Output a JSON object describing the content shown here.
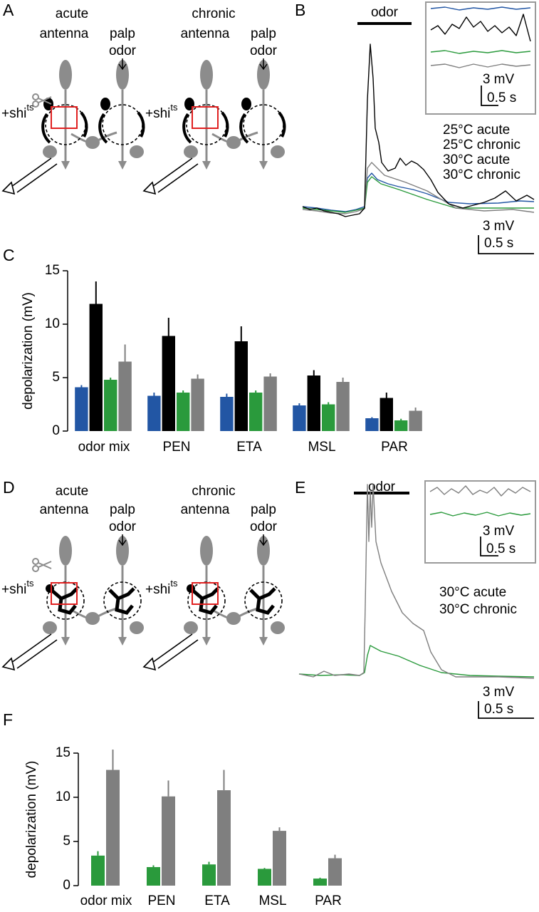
{
  "panels": [
    "A",
    "B",
    "C",
    "D",
    "E",
    "F"
  ],
  "diagram_A": {
    "left": {
      "condition": "acute",
      "input1": "antenna",
      "input2": "palp",
      "stimulus": "odor",
      "genotype": "+shi",
      "genotype_sup": "ts"
    },
    "right": {
      "condition": "chronic",
      "input1": "antenna",
      "input2": "palp",
      "stimulus": "odor",
      "genotype": "+shi",
      "genotype_sup": "ts"
    }
  },
  "diagram_D": {
    "left": {
      "condition": "acute",
      "input1": "antenna",
      "input2": "palp",
      "stimulus": "odor",
      "genotype": "+shi",
      "genotype_sup": "ts"
    },
    "right": {
      "condition": "chronic",
      "input1": "antenna",
      "input2": "palp",
      "stimulus": "odor",
      "genotype": "+shi",
      "genotype_sup": "ts"
    }
  },
  "trace_B": {
    "stimulus": "odor",
    "scale_v": "3 mV",
    "scale_t": "0.5 s",
    "inset_scale_v": "3 mV",
    "inset_scale_t": "0.5 s"
  },
  "trace_E": {
    "stimulus": "odor",
    "scale_v": "3 mV",
    "scale_t": "0.5 s",
    "inset_scale_v": "3 mV",
    "inset_scale_t": "0.5 s"
  },
  "chart_data": [
    {
      "type": "bar",
      "ylabel": "depolarization (mV)",
      "categories": [
        "odor mix",
        "PEN",
        "ETA",
        "MSL",
        "PAR"
      ],
      "series": [
        {
          "name": "25°C acute",
          "color": "#2256a4",
          "values": [
            4.1,
            3.3,
            3.2,
            2.4,
            1.2
          ],
          "errors": [
            0.2,
            0.3,
            0.3,
            0.2,
            0.1
          ]
        },
        {
          "name": "25°C chronic",
          "color": "#000000",
          "values": [
            11.9,
            8.9,
            8.4,
            5.2,
            3.1
          ],
          "errors": [
            2.1,
            1.7,
            1.4,
            0.5,
            0.5
          ]
        },
        {
          "name": "30°C acute",
          "color": "#2a9a3c",
          "values": [
            4.8,
            3.6,
            3.6,
            2.5,
            1.0
          ],
          "errors": [
            0.2,
            0.2,
            0.2,
            0.2,
            0.15
          ]
        },
        {
          "name": "30°C chronic",
          "color": "#7f7f7f",
          "values": [
            6.5,
            4.9,
            5.1,
            4.6,
            1.9
          ],
          "errors": [
            1.6,
            0.4,
            0.3,
            0.4,
            0.3
          ]
        }
      ],
      "ylim": [
        0,
        15
      ],
      "yticks": [
        0,
        5,
        10,
        15
      ]
    },
    {
      "type": "bar",
      "ylabel": "depolarization (mV)",
      "categories": [
        "odor mix",
        "PEN",
        "ETA",
        "MSL",
        "PAR"
      ],
      "series": [
        {
          "name": "30°C acute",
          "color": "#2a9a3c",
          "values": [
            3.4,
            2.1,
            2.4,
            1.9,
            0.8
          ],
          "errors": [
            0.5,
            0.2,
            0.3,
            0.1,
            0.1
          ]
        },
        {
          "name": "30°C chronic",
          "color": "#7f7f7f",
          "values": [
            13.1,
            10.1,
            10.8,
            6.2,
            3.1
          ],
          "errors": [
            2.3,
            1.8,
            2.3,
            0.4,
            0.4
          ]
        }
      ],
      "ylim": [
        0,
        15
      ],
      "yticks": [
        0,
        5,
        10,
        15
      ]
    }
  ]
}
